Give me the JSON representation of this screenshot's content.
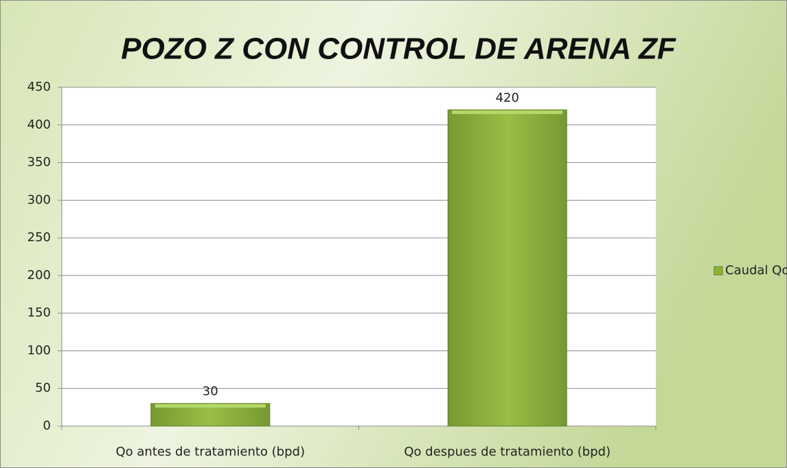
{
  "chart_data": {
    "type": "bar",
    "title": "POZO Z CON CONTROL DE ARENA ZF",
    "categories": [
      "Qo antes de tratamiento (bpd)",
      "Qo despues de tratamiento (bpd)"
    ],
    "series": [
      {
        "name": "Caudal Qo",
        "color": "#8db33a",
        "values": [
          30,
          420
        ]
      }
    ],
    "ylim": [
      0,
      450
    ],
    "yticks": [
      0,
      50,
      100,
      150,
      200,
      250,
      300,
      350,
      400,
      450
    ],
    "grid": true,
    "legend": "right"
  }
}
